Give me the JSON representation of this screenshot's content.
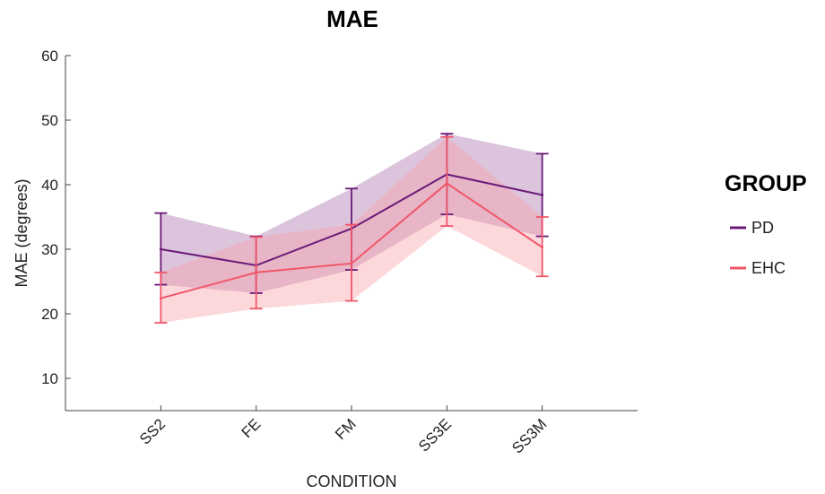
{
  "chart_data": {
    "type": "line",
    "title": "MAE",
    "xlabel": "CONDITION",
    "ylabel": "MAE (degrees)",
    "categories": [
      "SS2",
      "FE",
      "FM",
      "SS3E",
      "SS3M"
    ],
    "ylim": [
      5,
      60
    ],
    "yticks": [
      10,
      20,
      30,
      40,
      50,
      60
    ],
    "grid": false,
    "legend": {
      "title": "GROUP",
      "placement": "right"
    },
    "series": [
      {
        "name": "PD",
        "color": "#6b1a78",
        "fill_color": "#a86fa8",
        "values": [
          30.0,
          27.5,
          33.2,
          41.6,
          38.4
        ],
        "error_lower": [
          24.5,
          23.2,
          26.8,
          35.4,
          32.0
        ],
        "error_upper": [
          35.6,
          32.0,
          39.4,
          47.9,
          44.8
        ]
      },
      {
        "name": "EHC",
        "color": "#f0566a",
        "fill_color": "#fa9ea4",
        "values": [
          22.4,
          26.4,
          27.8,
          40.2,
          30.3
        ],
        "error_lower": [
          18.6,
          20.8,
          22.0,
          33.6,
          25.8
        ],
        "error_upper": [
          26.4,
          31.9,
          33.8,
          47.4,
          35.0
        ]
      }
    ]
  }
}
